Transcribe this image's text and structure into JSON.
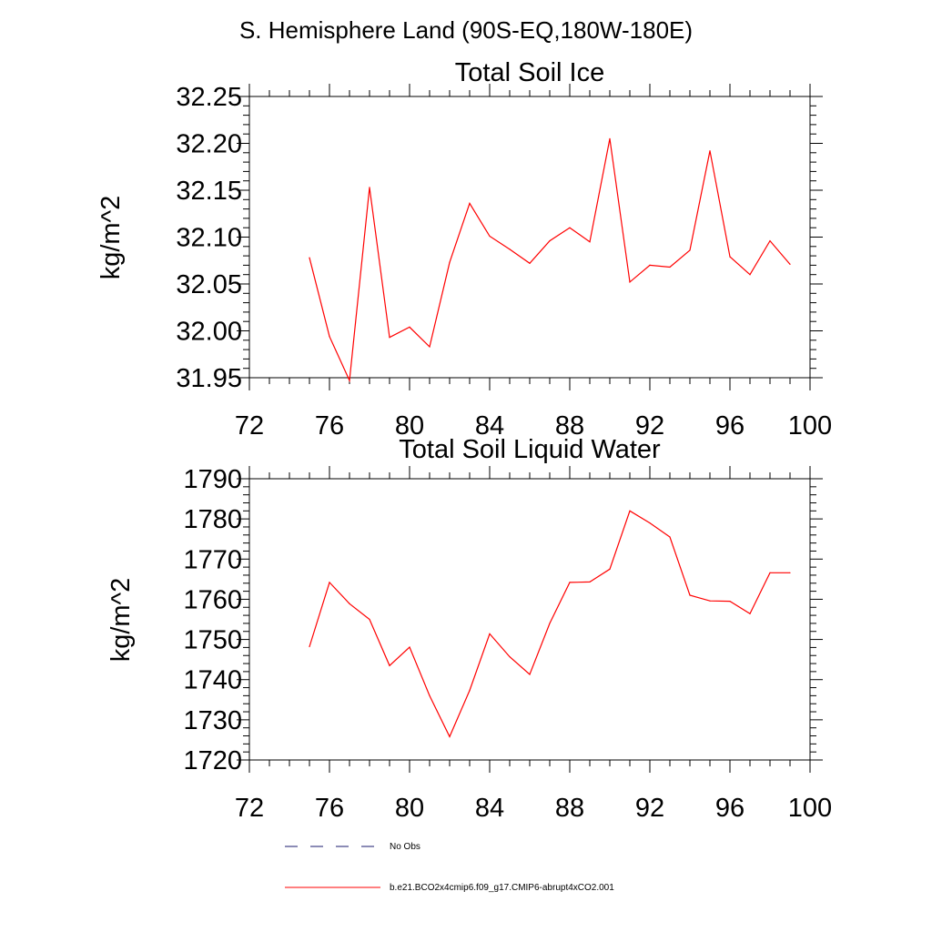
{
  "figure": {
    "title": "S. Hemisphere Land (90S-EQ,180W-180E)"
  },
  "chart_data": [
    {
      "type": "line",
      "title": "Total Soil Ice",
      "xlabel": "",
      "ylabel": "kg/m^2",
      "xlim": [
        72,
        100
      ],
      "ylim": [
        31.95,
        32.25
      ],
      "xticks": [
        72,
        76,
        80,
        84,
        88,
        92,
        96,
        100
      ],
      "yticks": [
        "31.95",
        "32.00",
        "32.05",
        "32.10",
        "32.15",
        "32.20",
        "32.25"
      ],
      "grid": false,
      "series": [
        {
          "name": "b.e21.BCO2x4cmip6.f09_g17.CMIP6-abrupt4xCO2.001",
          "color": "#ff0000",
          "x": [
            75,
            76,
            77,
            78,
            79,
            80,
            81,
            82,
            83,
            84,
            85,
            86,
            87,
            88,
            89,
            90,
            91,
            92,
            93,
            94,
            95,
            96,
            97,
            98,
            99
          ],
          "y": [
            32.078,
            31.994,
            31.947,
            32.153,
            31.993,
            32.004,
            31.983,
            32.073,
            32.136,
            32.101,
            32.087,
            32.072,
            32.096,
            32.11,
            32.095,
            32.205,
            32.052,
            32.07,
            32.068,
            32.086,
            32.192,
            32.079,
            32.06,
            32.096,
            32.071
          ]
        }
      ]
    },
    {
      "type": "line",
      "title": "Total Soil Liquid Water",
      "xlabel": "",
      "ylabel": "kg/m^2",
      "xlim": [
        72,
        100
      ],
      "ylim": [
        1720,
        1790
      ],
      "xticks": [
        72,
        76,
        80,
        84,
        88,
        92,
        96,
        100
      ],
      "yticks": [
        "1720",
        "1730",
        "1740",
        "1750",
        "1760",
        "1770",
        "1780",
        "1790"
      ],
      "grid": false,
      "series": [
        {
          "name": "b.e21.BCO2x4cmip6.f09_g17.CMIP6-abrupt4xCO2.001",
          "color": "#ff0000",
          "x": [
            75,
            76,
            77,
            78,
            79,
            80,
            81,
            82,
            83,
            84,
            85,
            86,
            87,
            88,
            89,
            90,
            91,
            92,
            93,
            94,
            95,
            96,
            97,
            98,
            99
          ],
          "y": [
            1748.2,
            1764.2,
            1758.9,
            1755.0,
            1743.5,
            1748.1,
            1736.0,
            1725.8,
            1737.3,
            1751.4,
            1745.7,
            1741.3,
            1754.0,
            1764.2,
            1764.3,
            1767.5,
            1782.0,
            1779.0,
            1775.5,
            1761.0,
            1759.6,
            1759.5,
            1756.4,
            1766.6,
            1766.6
          ]
        }
      ]
    }
  ],
  "legend": {
    "placement": "bottom-center",
    "items": [
      {
        "label": "No Obs",
        "color": "#1a1a6e",
        "style": "dashed"
      },
      {
        "label": "b.e21.BCO2x4cmip6.f09_g17.CMIP6-abrupt4xCO2.001",
        "color": "#ff0000",
        "style": "solid"
      }
    ]
  }
}
